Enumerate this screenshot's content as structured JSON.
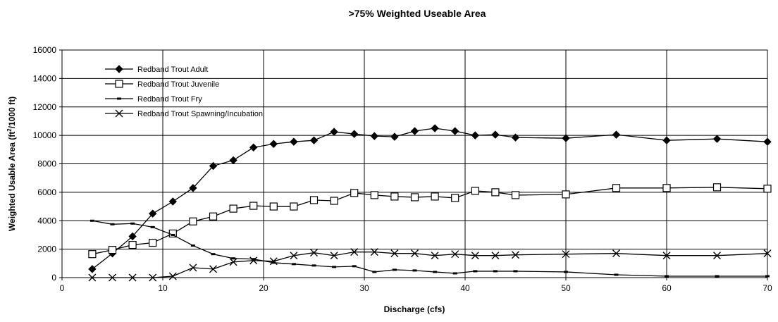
{
  "chart_data": {
    "type": "line",
    "title": ">75% Weighted Useable Area",
    "xlabel": "Discharge (cfs)",
    "ylabel_main": "Weighted Usable Area (ft",
    "ylabel_sup": "2",
    "ylabel_tail": "/1000 ft)",
    "xlim": [
      0,
      70
    ],
    "ylim": [
      0,
      16000
    ],
    "x_ticks": [
      0,
      10,
      20,
      30,
      40,
      50,
      60,
      70
    ],
    "y_ticks": [
      0,
      2000,
      4000,
      6000,
      8000,
      10000,
      12000,
      14000,
      16000
    ],
    "grid": true,
    "legend_position": "top-left",
    "x": [
      3,
      5,
      7,
      9,
      11,
      13,
      15,
      17,
      19,
      21,
      23,
      25,
      27,
      29,
      31,
      33,
      35,
      37,
      39,
      41,
      43,
      45,
      50,
      55,
      60,
      65,
      70
    ],
    "series": [
      {
        "name": "Redband Trout Adult",
        "marker": "diamond",
        "values": [
          600,
          1700,
          2900,
          4500,
          5350,
          6300,
          7850,
          8250,
          9150,
          9400,
          9550,
          9650,
          10250,
          10100,
          9950,
          9900,
          10300,
          10500,
          10300,
          10000,
          10050,
          9850,
          9800,
          10050,
          9650,
          9750,
          9550
        ]
      },
      {
        "name": "Redband Trout Juvenile",
        "marker": "square",
        "values": [
          1650,
          1950,
          2300,
          2450,
          3100,
          3950,
          4300,
          4850,
          5050,
          5000,
          5000,
          5450,
          5400,
          5950,
          5800,
          5700,
          5650,
          5700,
          5600,
          6100,
          6000,
          5800,
          5850,
          6300,
          6300,
          6350,
          6250
        ]
      },
      {
        "name": "Redband Trout Fry",
        "marker": "dash",
        "values": [
          4000,
          3750,
          3800,
          3550,
          3000,
          2250,
          1650,
          1350,
          1300,
          1050,
          950,
          850,
          750,
          800,
          400,
          550,
          500,
          400,
          300,
          450,
          450,
          450,
          400,
          200,
          100,
          100,
          100
        ]
      },
      {
        "name": "Redband Trout Spawning/Incubation",
        "marker": "x",
        "values": [
          0,
          0,
          0,
          0,
          100,
          700,
          600,
          1100,
          1200,
          1150,
          1550,
          1750,
          1550,
          1800,
          1800,
          1700,
          1700,
          1550,
          1650,
          1550,
          1550,
          1600,
          1650,
          1700,
          1550,
          1550,
          1700
        ]
      }
    ]
  }
}
